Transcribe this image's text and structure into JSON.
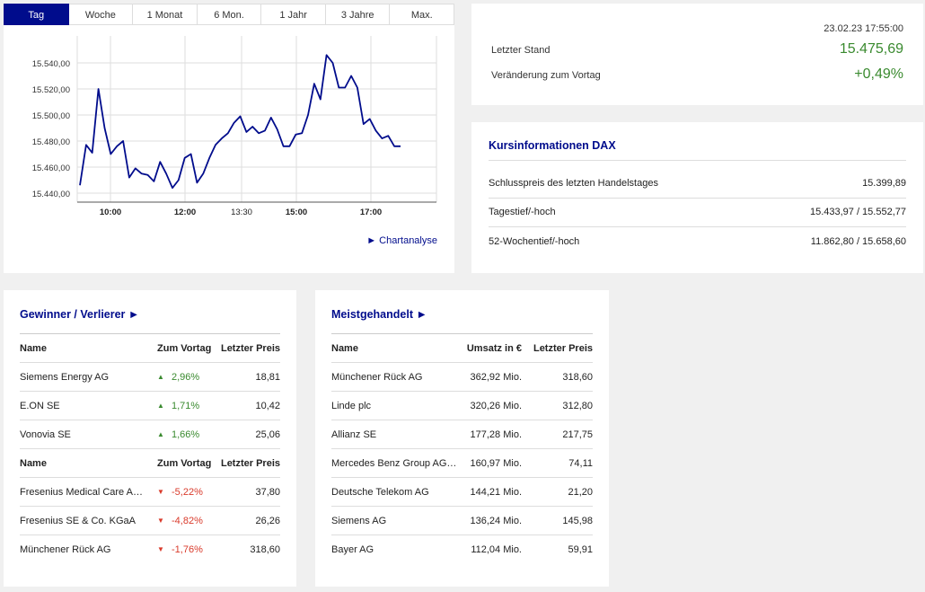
{
  "tabs": [
    "Tag",
    "Woche",
    "1 Monat",
    "6 Mon.",
    "1 Jahr",
    "3 Jahre",
    "Max."
  ],
  "active_tab": 0,
  "chart_link": "► Chartanalyse",
  "chart_data": {
    "type": "line",
    "x_ticks": [
      "10:00",
      "12:00",
      "13:30",
      "15:00",
      "17:00"
    ],
    "y_ticks": [
      "15.440,00",
      "15.460,00",
      "15.480,00",
      "15.500,00",
      "15.520,00",
      "15.540,00"
    ],
    "ylim": [
      15440,
      15540
    ],
    "series": [
      {
        "color": "#000c8c",
        "values": [
          15446,
          15477,
          15471,
          15520,
          15490,
          15470,
          15476,
          15480,
          15452,
          15459,
          15455,
          15454,
          15449,
          15464,
          15455,
          15444,
          15450,
          15467,
          15470,
          15448,
          15455,
          15467,
          15477,
          15482,
          15486,
          15494,
          15499,
          15487,
          15491,
          15486,
          15488,
          15498,
          15489,
          15476,
          15476,
          15485,
          15486,
          15500,
          15524,
          15512,
          15546,
          15540,
          15521,
          15521,
          15530,
          15521,
          15493,
          15497,
          15488,
          15482,
          15484,
          15476,
          15476
        ]
      }
    ]
  },
  "quote": {
    "date": "23.02.23 17:55:00",
    "last_label": "Letzter Stand",
    "last_value": "15.475,69",
    "change_label": "Veränderung zum Vortag",
    "change_value": "+0,49%"
  },
  "info": {
    "title": "Kursinformationen DAX",
    "rows": [
      {
        "label": "Schlusspreis des letzten Handelstages",
        "value": "15.399,89"
      },
      {
        "label": "Tagestief/-hoch",
        "value": "15.433,97 / 15.552,77"
      },
      {
        "label": "52-Wochentief/-hoch",
        "value": "11.862,80 / 15.658,60"
      }
    ]
  },
  "gainers_losers": {
    "title": "Gewinner / Verlierer ►",
    "header": {
      "name": "Name",
      "change": "Zum Vortag",
      "price": "Letzter Preis"
    },
    "gainers": [
      {
        "name": "Siemens Energy AG",
        "change": "2,96%",
        "price": "18,81"
      },
      {
        "name": "E.ON SE",
        "change": "1,71%",
        "price": "10,42"
      },
      {
        "name": "Vonovia SE",
        "change": "1,66%",
        "price": "25,06"
      }
    ],
    "losers": [
      {
        "name": "Fresenius Medical Care A…",
        "change": "-5,22%",
        "price": "37,80"
      },
      {
        "name": "Fresenius SE & Co. KGaA",
        "change": "-4,82%",
        "price": "26,26"
      },
      {
        "name": "Münchener Rück AG",
        "change": "-1,76%",
        "price": "318,60"
      }
    ]
  },
  "most_traded": {
    "title": "Meistgehandelt ►",
    "header": {
      "name": "Name",
      "volume": "Umsatz in €",
      "price": "Letzter Preis"
    },
    "rows": [
      {
        "name": "Münchener Rück AG",
        "volume": "362,92 Mio.",
        "price": "318,60"
      },
      {
        "name": "Linde plc",
        "volume": "320,26 Mio.",
        "price": "312,80"
      },
      {
        "name": "Allianz SE",
        "volume": "177,28 Mio.",
        "price": "217,75"
      },
      {
        "name": "Mercedes Benz Group AG…",
        "volume": "160,97 Mio.",
        "price": "74,11"
      },
      {
        "name": "Deutsche Telekom AG",
        "volume": "144,21 Mio.",
        "price": "21,20"
      },
      {
        "name": "Siemens AG",
        "volume": "136,24 Mio.",
        "price": "145,98"
      },
      {
        "name": "Bayer AG",
        "volume": "112,04 Mio.",
        "price": "59,91"
      }
    ]
  }
}
